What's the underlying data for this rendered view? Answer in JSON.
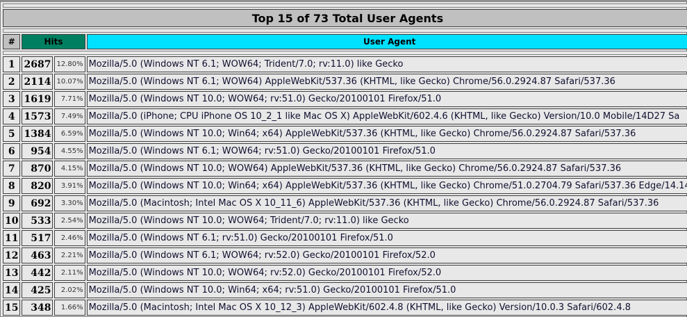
{
  "title": "Top 15 of 73 Total User Agents",
  "headers": {
    "num": "#",
    "hits": "Hits",
    "agent": "User Agent"
  },
  "colors": {
    "hits_header": "#008060",
    "agent_header": "#00e0ff",
    "title_bg": "#c0c0c0"
  },
  "rows": [
    {
      "n": "1",
      "hits": "2687",
      "pct": "12.80%",
      "agent": "Mozilla/5.0 (Windows NT 6.1; WOW64; Trident/7.0; rv:11.0) like Gecko"
    },
    {
      "n": "2",
      "hits": "2114",
      "pct": "10.07%",
      "agent": "Mozilla/5.0 (Windows NT 6.1; WOW64) AppleWebKit/537.36 (KHTML, like Gecko) Chrome/56.0.2924.87 Safari/537.36"
    },
    {
      "n": "3",
      "hits": "1619",
      "pct": "7.71%",
      "agent": "Mozilla/5.0 (Windows NT 10.0; WOW64; rv:51.0) Gecko/20100101 Firefox/51.0"
    },
    {
      "n": "4",
      "hits": "1573",
      "pct": "7.49%",
      "agent": "Mozilla/5.0 (iPhone; CPU iPhone OS 10_2_1 like Mac OS X) AppleWebKit/602.4.6 (KHTML, like Gecko) Version/10.0 Mobile/14D27 Sa"
    },
    {
      "n": "5",
      "hits": "1384",
      "pct": "6.59%",
      "agent": "Mozilla/5.0 (Windows NT 10.0; Win64; x64) AppleWebKit/537.36 (KHTML, like Gecko) Chrome/56.0.2924.87 Safari/537.36"
    },
    {
      "n": "6",
      "hits": "954",
      "pct": "4.55%",
      "agent": "Mozilla/5.0 (Windows NT 6.1; WOW64; rv:51.0) Gecko/20100101 Firefox/51.0"
    },
    {
      "n": "7",
      "hits": "870",
      "pct": "4.15%",
      "agent": "Mozilla/5.0 (Windows NT 10.0; WOW64) AppleWebKit/537.36 (KHTML, like Gecko) Chrome/56.0.2924.87 Safari/537.36"
    },
    {
      "n": "8",
      "hits": "820",
      "pct": "3.91%",
      "agent": "Mozilla/5.0 (Windows NT 10.0; Win64; x64) AppleWebKit/537.36 (KHTML, like Gecko) Chrome/51.0.2704.79 Safari/537.36 Edge/14.14"
    },
    {
      "n": "9",
      "hits": "692",
      "pct": "3.30%",
      "agent": "Mozilla/5.0 (Macintosh; Intel Mac OS X 10_11_6) AppleWebKit/537.36 (KHTML, like Gecko) Chrome/56.0.2924.87 Safari/537.36"
    },
    {
      "n": "10",
      "hits": "533",
      "pct": "2.54%",
      "agent": "Mozilla/5.0 (Windows NT 10.0; WOW64; Trident/7.0; rv:11.0) like Gecko"
    },
    {
      "n": "11",
      "hits": "517",
      "pct": "2.46%",
      "agent": "Mozilla/5.0 (Windows NT 6.1; rv:51.0) Gecko/20100101 Firefox/51.0"
    },
    {
      "n": "12",
      "hits": "463",
      "pct": "2.21%",
      "agent": "Mozilla/5.0 (Windows NT 6.1; WOW64; rv:52.0) Gecko/20100101 Firefox/52.0"
    },
    {
      "n": "13",
      "hits": "442",
      "pct": "2.11%",
      "agent": "Mozilla/5.0 (Windows NT 10.0; WOW64; rv:52.0) Gecko/20100101 Firefox/52.0"
    },
    {
      "n": "14",
      "hits": "425",
      "pct": "2.02%",
      "agent": "Mozilla/5.0 (Windows NT 10.0; Win64; x64; rv:51.0) Gecko/20100101 Firefox/51.0"
    },
    {
      "n": "15",
      "hits": "348",
      "pct": "1.66%",
      "agent": "Mozilla/5.0 (Macintosh; Intel Mac OS X 10_12_3) AppleWebKit/602.4.8 (KHTML, like Gecko) Version/10.0.3 Safari/602.4.8"
    }
  ]
}
